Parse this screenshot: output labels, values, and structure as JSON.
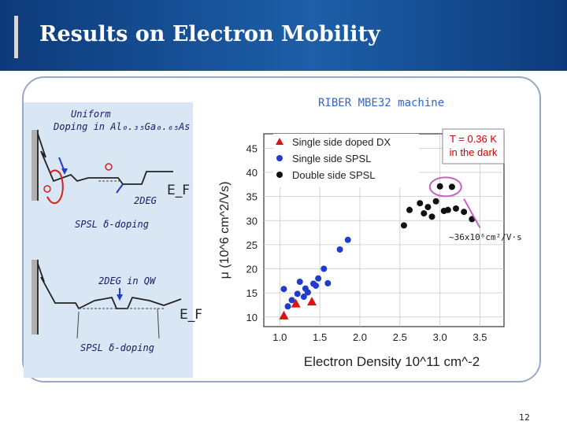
{
  "slide": {
    "title": "Results on Electron Mobility",
    "machine_label": "RIBER MBE32 machine",
    "page_number": "12",
    "annotation": "~36x10⁶cm²/V·s"
  },
  "diagram_top": {
    "caption_line1": "Uniform",
    "caption_line2": "Doping in Al₀.₃₅Ga₀.₆₅As",
    "fermi_label": "E_F",
    "gas_label": "2DEG",
    "doping_label": "SPSL  δ-doping"
  },
  "diagram_bottom": {
    "qw_label": "2DEG in QW",
    "fermi_label": "E_F",
    "doping_label": "SPSL  δ-doping"
  },
  "colors": {
    "blue_series": "#1f3ccc",
    "red_series": "#dd1111",
    "black_series": "#111111",
    "temp_box": "#cc0000",
    "highlight": "#c860c8"
  },
  "chart_data": {
    "type": "scatter",
    "title": "",
    "xlabel": "Electron Density 10^11 cm^-2",
    "ylabel": "μ (10^6 cm^2/Vs)",
    "xlim": [
      0.8,
      3.8
    ],
    "ylim": [
      8,
      48
    ],
    "xticks": [
      1.0,
      1.5,
      2.0,
      2.5,
      3.0,
      3.5
    ],
    "yticks": [
      10,
      15,
      20,
      25,
      30,
      35,
      40,
      45
    ],
    "grid": true,
    "legend_position": "top-left",
    "condition_box": [
      "T = 0.36 K",
      "in the dark"
    ],
    "series": [
      {
        "name": "Single side doped DX",
        "marker": "triangle",
        "color": "red",
        "points": [
          [
            1.05,
            10.3
          ],
          [
            1.2,
            12.8
          ],
          [
            1.4,
            13.2
          ]
        ]
      },
      {
        "name": "Single side SPSL",
        "marker": "circle",
        "color": "blue",
        "points": [
          [
            1.05,
            15.8
          ],
          [
            1.1,
            12.2
          ],
          [
            1.15,
            13.5
          ],
          [
            1.22,
            14.8
          ],
          [
            1.25,
            17.3
          ],
          [
            1.3,
            14.2
          ],
          [
            1.32,
            15.9
          ],
          [
            1.35,
            15.1
          ],
          [
            1.42,
            16.9
          ],
          [
            1.45,
            16.5
          ],
          [
            1.48,
            18.0
          ],
          [
            1.55,
            20.0
          ],
          [
            1.6,
            17.0
          ],
          [
            1.75,
            24.0
          ],
          [
            1.85,
            26.0
          ]
        ]
      },
      {
        "name": "Double side SPSL",
        "marker": "circle",
        "color": "black",
        "points": [
          [
            2.55,
            29.0
          ],
          [
            2.62,
            32.2
          ],
          [
            2.75,
            33.6
          ],
          [
            2.8,
            31.5
          ],
          [
            2.85,
            32.8
          ],
          [
            2.9,
            30.8
          ],
          [
            2.95,
            34.0
          ],
          [
            3.0,
            37.1
          ],
          [
            3.05,
            32.0
          ],
          [
            3.1,
            32.2
          ],
          [
            3.15,
            37.0
          ],
          [
            3.2,
            32.5
          ],
          [
            3.3,
            31.8
          ],
          [
            3.4,
            30.3
          ]
        ]
      }
    ]
  }
}
